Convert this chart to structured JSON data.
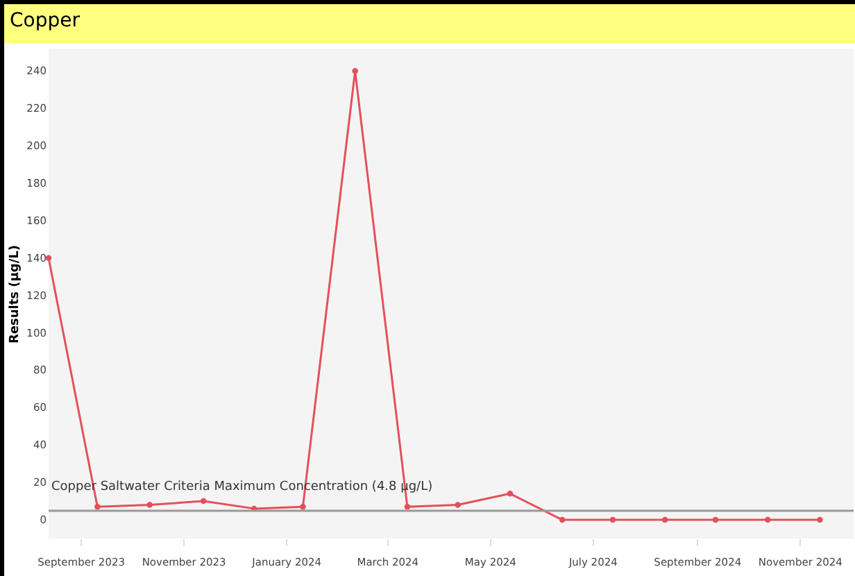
{
  "chart_data": {
    "type": "line",
    "title": "Copper",
    "ylabel": "Results (µg/L)",
    "x": [
      "2023-08-13",
      "2023-09-11",
      "2023-10-12",
      "2023-11-13",
      "2023-12-13",
      "2024-01-11",
      "2024-02-11",
      "2024-03-13",
      "2024-04-12",
      "2024-05-13",
      "2024-06-13",
      "2024-07-13",
      "2024-08-13",
      "2024-09-12",
      "2024-10-13",
      "2024-11-13"
    ],
    "series": [
      {
        "color": "#e4505a",
        "values": [
          140,
          7,
          8,
          10,
          6,
          7,
          240,
          7,
          8,
          14,
          0,
          0,
          0,
          0,
          0,
          0
        ]
      }
    ],
    "xlim": [
      "2023-08-13",
      "2024-12-03"
    ],
    "xticks": [
      {
        "value": "2023-09-01",
        "label": "September 2023"
      },
      {
        "value": "2023-11-01",
        "label": "November 2023"
      },
      {
        "value": "2024-01-01",
        "label": "January 2024"
      },
      {
        "value": "2024-03-01",
        "label": "March 2024"
      },
      {
        "value": "2024-05-01",
        "label": "May 2024"
      },
      {
        "value": "2024-07-01",
        "label": "July 2024"
      },
      {
        "value": "2024-09-01",
        "label": "September 2024"
      },
      {
        "value": "2024-11-01",
        "label": "November 2024"
      }
    ],
    "ylim": [
      -10,
      252
    ],
    "yticks": [
      0,
      20,
      40,
      60,
      80,
      100,
      120,
      140,
      160,
      180,
      200,
      220,
      240
    ],
    "ref_lines": [
      {
        "axis": "y",
        "value": 4.8,
        "label": "Copper Saltwater Criteria Maximum Concentration (4.8 µg/L)",
        "color": "#999999"
      }
    ],
    "marker": "circle",
    "grid": false
  }
}
